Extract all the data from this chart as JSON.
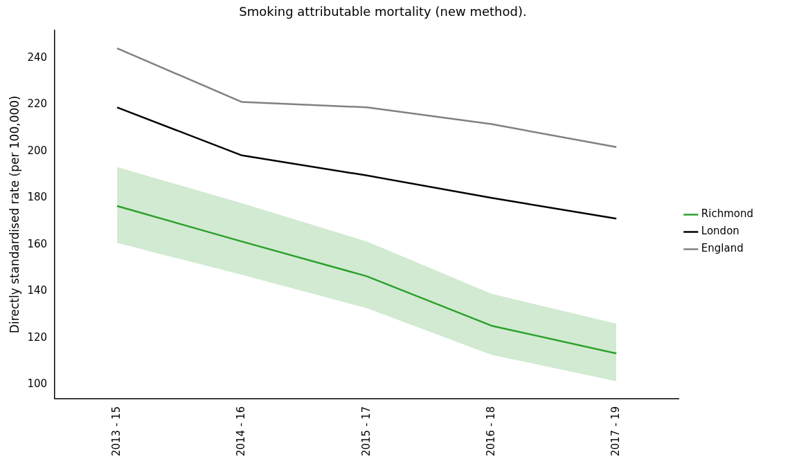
{
  "chart_data": {
    "type": "line",
    "title": "Smoking attributable mortality (new method).",
    "ylabel": "Directly standardised rate (per 100,000)",
    "categories": [
      "2013 - 15",
      "2014 - 16",
      "2015 - 17",
      "2016 - 18",
      "2017 - 19"
    ],
    "series": [
      {
        "name": "Richmond",
        "color": "#2ca02c",
        "values": [
          176.6,
          161.4,
          146.5,
          125.3,
          113.4
        ],
        "lower": [
          160.8,
          147.1,
          132.8,
          112.8,
          101.5
        ],
        "upper": [
          193.3,
          177.8,
          161.4,
          139.0,
          126.2
        ]
      },
      {
        "name": "London",
        "color": "#000000",
        "values": [
          218.9,
          198.3,
          189.7,
          180.1,
          171.2
        ]
      },
      {
        "name": "England",
        "color": "#808080",
        "values": [
          244.2,
          221.2,
          218.9,
          211.7,
          201.9
        ]
      }
    ],
    "ylim": [
      94,
      252
    ],
    "yticks": [
      100,
      120,
      140,
      160,
      180,
      200,
      220,
      240
    ],
    "grid": false,
    "legend": "right",
    "marker": "none",
    "line_style": "solid"
  }
}
